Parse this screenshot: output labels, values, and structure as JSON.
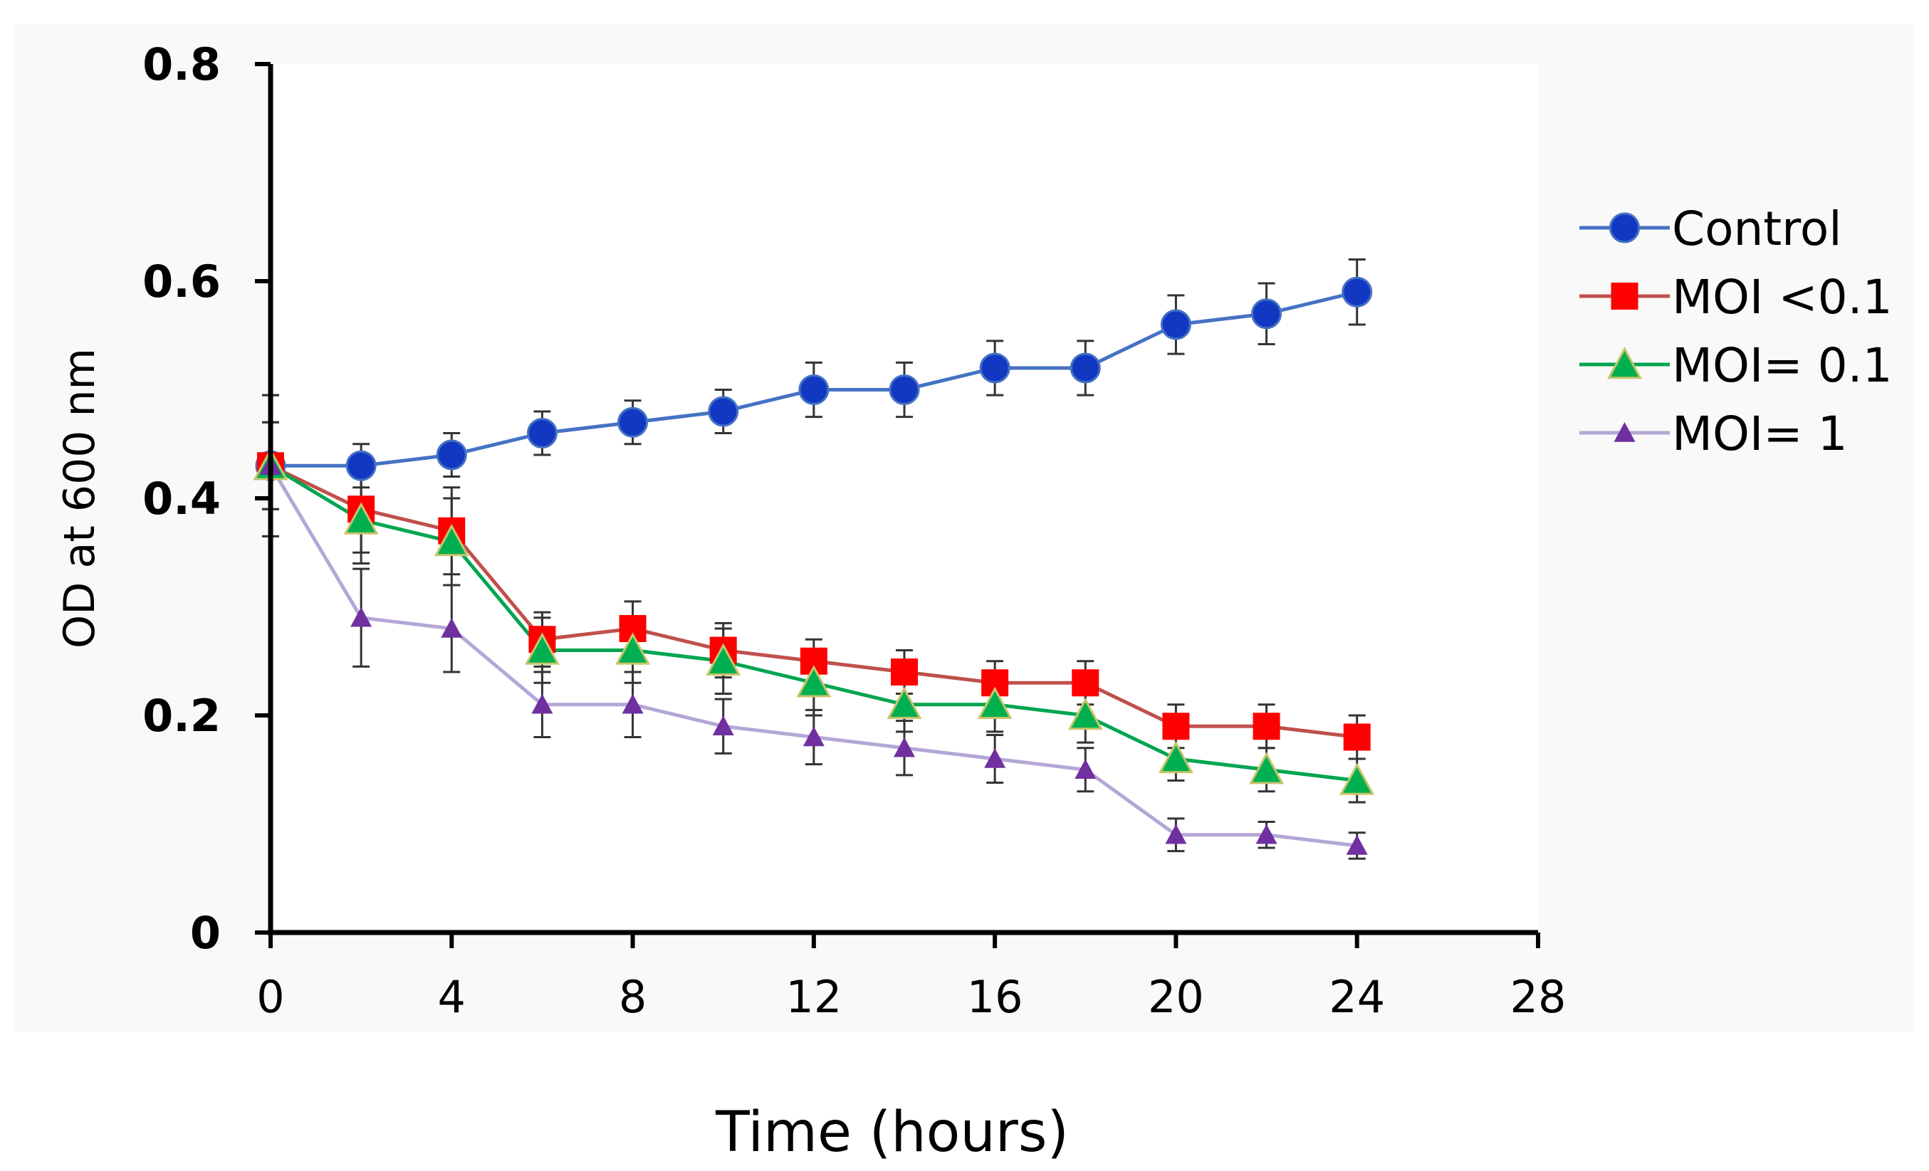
{
  "chart_data": {
    "type": "line",
    "title": "",
    "xlabel": "Time (hours)",
    "ylabel": "OD at 600 nm",
    "xlim": [
      0,
      28
    ],
    "ylim": [
      0,
      0.8
    ],
    "xticks": [
      0,
      4,
      8,
      12,
      16,
      20,
      24,
      28
    ],
    "yticks": [
      0,
      0.2,
      0.4,
      0.6,
      0.8
    ],
    "xtick_labels": [
      "0",
      "4",
      "8",
      "12",
      "16",
      "20",
      "24",
      "28"
    ],
    "ytick_labels": [
      "0",
      "0.2",
      "0.4",
      "0.6",
      "0.8"
    ],
    "x": [
      0,
      2,
      4,
      6,
      8,
      10,
      12,
      14,
      16,
      18,
      20,
      22,
      24
    ],
    "legend_position": "right",
    "series": [
      {
        "name": "Control",
        "color": "#4472c4",
        "marker_color": "#1238c2",
        "marker": "circle",
        "values": [
          0.43,
          0.43,
          0.44,
          0.46,
          0.47,
          0.48,
          0.5,
          0.5,
          0.52,
          0.52,
          0.56,
          0.57,
          0.59
        ],
        "errors": [
          0.065,
          0.02,
          0.02,
          0.02,
          0.02,
          0.02,
          0.025,
          0.025,
          0.025,
          0.025,
          0.027,
          0.028,
          0.03
        ]
      },
      {
        "name": "MOI <0.1",
        "color": "#c0504d",
        "marker_color": "#ff0000",
        "marker": "square",
        "values": [
          0.43,
          0.39,
          0.37,
          0.27,
          0.28,
          0.26,
          0.25,
          0.24,
          0.23,
          0.23,
          0.19,
          0.19,
          0.18
        ],
        "errors": [
          0.04,
          0.04,
          0.04,
          0.025,
          0.025,
          0.025,
          0.02,
          0.02,
          0.02,
          0.02,
          0.02,
          0.02,
          0.02
        ]
      },
      {
        "name": "MOI= 0.1",
        "color": "#00a550",
        "marker_color": "#00b050",
        "marker_stroke": "#c9c46b",
        "marker": "triangle",
        "values": [
          0.43,
          0.38,
          0.36,
          0.26,
          0.26,
          0.25,
          0.23,
          0.21,
          0.21,
          0.2,
          0.16,
          0.15,
          0.14
        ],
        "errors": [
          0.04,
          0.04,
          0.04,
          0.03,
          0.03,
          0.03,
          0.03,
          0.025,
          0.025,
          0.025,
          0.02,
          0.02,
          0.02
        ]
      },
      {
        "name": "MOI= 1",
        "color": "#b4a7d6",
        "marker_color": "#7030a0",
        "marker": "triangle-small",
        "values": [
          0.43,
          0.29,
          0.28,
          0.21,
          0.21,
          0.19,
          0.18,
          0.17,
          0.16,
          0.15,
          0.09,
          0.09,
          0.08
        ],
        "errors": [
          0.065,
          0.045,
          0.04,
          0.03,
          0.03,
          0.025,
          0.025,
          0.025,
          0.022,
          0.02,
          0.015,
          0.012,
          0.012
        ]
      }
    ]
  }
}
